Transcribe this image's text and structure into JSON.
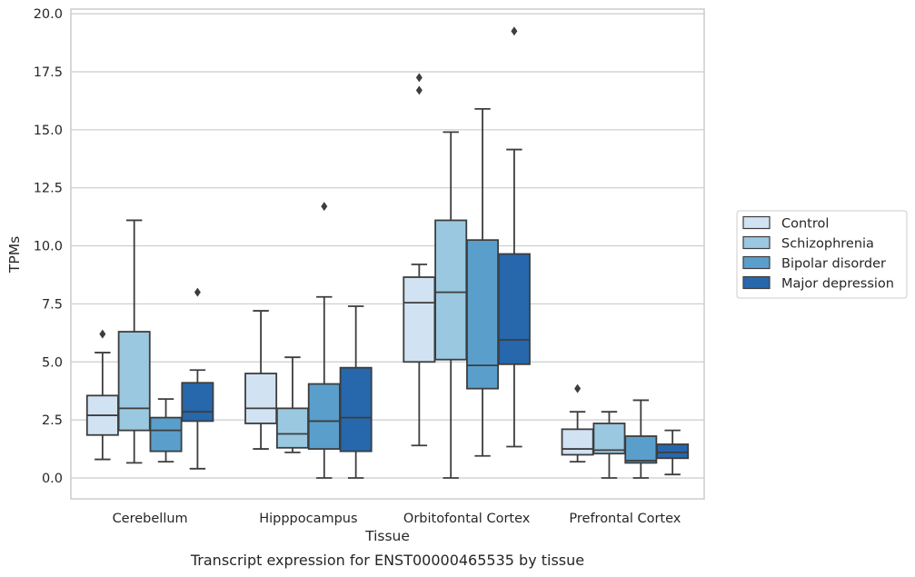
{
  "chart_data": {
    "type": "box",
    "xlabel": "Tissue",
    "ylabel": "TPMs",
    "caption": "Transcript expression for ENST00000465535 by tissue",
    "ylim": [
      -0.9,
      20.2
    ],
    "yticks": [
      "0.0",
      "2.5",
      "5.0",
      "7.5",
      "10.0",
      "12.5",
      "15.0",
      "17.5",
      "20.0"
    ],
    "categories": [
      "Cerebellum",
      "Hipppocampus",
      "Orbitofontal Cortex",
      "Prefrontal Cortex"
    ],
    "grid": "horizontal",
    "legend_position": "right",
    "colors": [
      "#d1e2f2",
      "#9ac8e0",
      "#5a9fcc",
      "#2767ac"
    ],
    "edge_color": "#3d3d3d",
    "series": [
      {
        "name": "Control",
        "boxes": [
          {
            "whislo": 0.8,
            "q1": 1.85,
            "med": 2.7,
            "q3": 3.55,
            "whishi": 5.4,
            "fliers": [
              6.2
            ]
          },
          {
            "whislo": 1.25,
            "q1": 2.35,
            "med": 3.0,
            "q3": 4.5,
            "whishi": 7.2,
            "fliers": []
          },
          {
            "whislo": 1.4,
            "q1": 5.0,
            "med": 7.55,
            "q3": 8.65,
            "whishi": 9.2,
            "fliers": [
              16.7,
              17.25
            ]
          },
          {
            "whislo": 0.7,
            "q1": 1.0,
            "med": 1.25,
            "q3": 2.1,
            "whishi": 2.85,
            "fliers": [
              3.85
            ]
          }
        ]
      },
      {
        "name": "Schizophrenia",
        "boxes": [
          {
            "whislo": 0.65,
            "q1": 2.05,
            "med": 3.0,
            "q3": 6.3,
            "whishi": 11.1,
            "fliers": []
          },
          {
            "whislo": 1.1,
            "q1": 1.3,
            "med": 1.9,
            "q3": 3.0,
            "whishi": 5.2,
            "fliers": []
          },
          {
            "whislo": 0.0,
            "q1": 5.1,
            "med": 8.0,
            "q3": 11.1,
            "whishi": 14.9,
            "fliers": []
          },
          {
            "whislo": 0.0,
            "q1": 1.05,
            "med": 1.2,
            "q3": 2.35,
            "whishi": 2.85,
            "fliers": []
          }
        ]
      },
      {
        "name": "Bipolar disorder",
        "boxes": [
          {
            "whislo": 0.7,
            "q1": 1.15,
            "med": 2.05,
            "q3": 2.6,
            "whishi": 3.4,
            "fliers": []
          },
          {
            "whislo": 0.0,
            "q1": 1.25,
            "med": 2.45,
            "q3": 4.05,
            "whishi": 7.8,
            "fliers": [
              11.7
            ]
          },
          {
            "whislo": 0.95,
            "q1": 3.85,
            "med": 4.85,
            "q3": 10.25,
            "whishi": 15.9,
            "fliers": []
          },
          {
            "whislo": 0.0,
            "q1": 0.65,
            "med": 0.75,
            "q3": 1.8,
            "whishi": 3.35,
            "fliers": []
          }
        ]
      },
      {
        "name": "Major depression",
        "boxes": [
          {
            "whislo": 0.4,
            "q1": 2.45,
            "med": 2.85,
            "q3": 4.1,
            "whishi": 4.65,
            "fliers": [
              8.0
            ]
          },
          {
            "whislo": 0.0,
            "q1": 1.15,
            "med": 2.6,
            "q3": 4.75,
            "whishi": 7.4,
            "fliers": []
          },
          {
            "whislo": 1.35,
            "q1": 4.9,
            "med": 5.95,
            "q3": 9.65,
            "whishi": 14.15,
            "fliers": [
              19.25
            ]
          },
          {
            "whislo": 0.15,
            "q1": 0.85,
            "med": 1.1,
            "q3": 1.45,
            "whishi": 2.05,
            "fliers": []
          }
        ]
      }
    ]
  }
}
